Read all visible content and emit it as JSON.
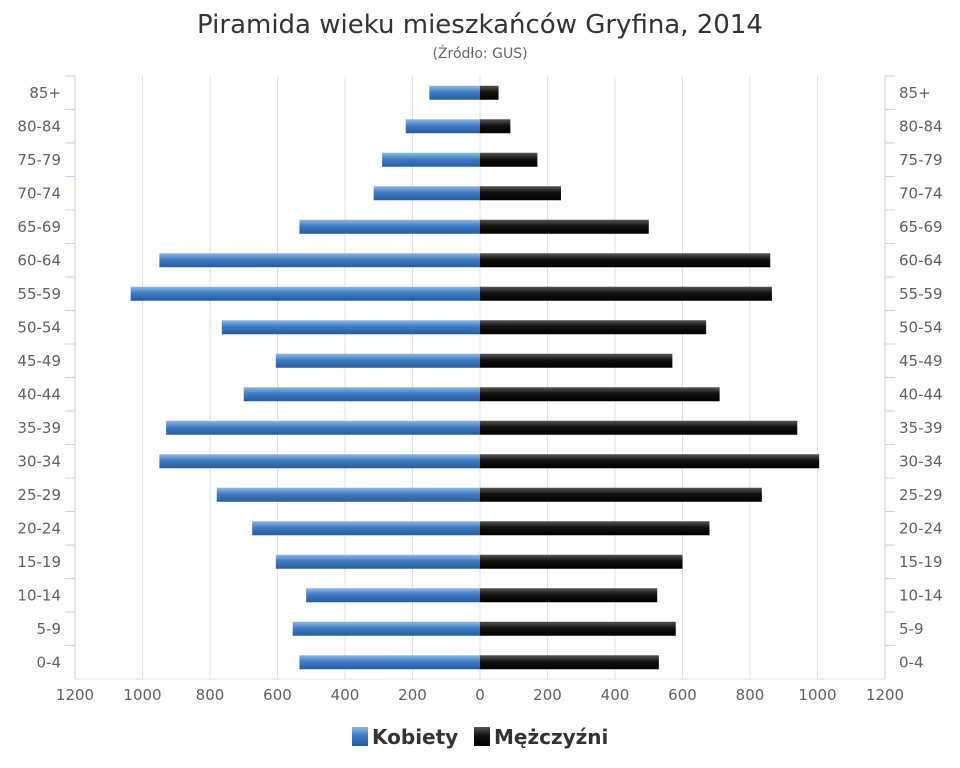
{
  "chart_data": {
    "type": "bar",
    "orientation": "horizontal-population-pyramid",
    "title": "Piramida wieku mieszkańców Gryfina, 2014",
    "subtitle": "(Źródło: GUS)",
    "categories": [
      "85+",
      "80-84",
      "75-79",
      "70-74",
      "65-69",
      "60-64",
      "55-59",
      "50-54",
      "45-49",
      "40-44",
      "35-39",
      "30-34",
      "25-29",
      "20-24",
      "15-19",
      "10-14",
      "5-9",
      "0-4"
    ],
    "series": [
      {
        "name": "Kobiety",
        "color": "#4a7fbf",
        "values": [
          150,
          220,
          290,
          315,
          535,
          950,
          1035,
          765,
          605,
          700,
          930,
          950,
          780,
          675,
          605,
          515,
          555,
          535
        ]
      },
      {
        "name": "Mężczyźni",
        "color": "#1a1a1a",
        "values": [
          55,
          90,
          170,
          240,
          500,
          860,
          865,
          670,
          570,
          710,
          940,
          1005,
          835,
          680,
          600,
          525,
          580,
          530
        ]
      }
    ],
    "xlim": [
      -1200,
      1200
    ],
    "x_ticks": [
      "1200",
      "1000",
      "800",
      "600",
      "400",
      "200",
      "0",
      "200",
      "400",
      "600",
      "800",
      "1000",
      "1200"
    ],
    "grid": true,
    "legend": "bottom-center"
  }
}
